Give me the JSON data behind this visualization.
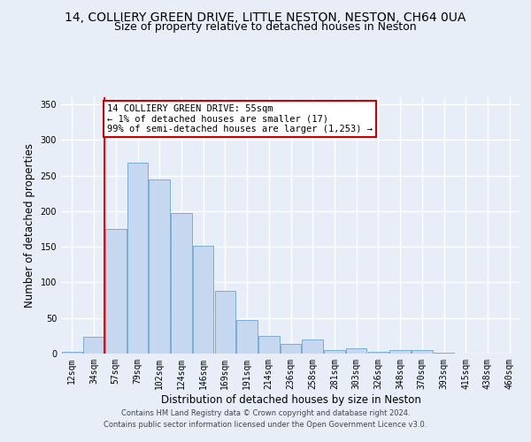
{
  "title_line1": "14, COLLIERY GREEN DRIVE, LITTLE NESTON, NESTON, CH64 0UA",
  "title_line2": "Size of property relative to detached houses in Neston",
  "xlabel": "Distribution of detached houses by size in Neston",
  "ylabel": "Number of detached properties",
  "bin_labels": [
    "12sqm",
    "34sqm",
    "57sqm",
    "79sqm",
    "102sqm",
    "124sqm",
    "146sqm",
    "169sqm",
    "191sqm",
    "214sqm",
    "236sqm",
    "258sqm",
    "281sqm",
    "303sqm",
    "326sqm",
    "348sqm",
    "370sqm",
    "393sqm",
    "415sqm",
    "438sqm",
    "460sqm"
  ],
  "bar_heights": [
    3,
    24,
    175,
    268,
    245,
    198,
    152,
    88,
    47,
    25,
    14,
    20,
    5,
    7,
    2,
    5,
    5,
    1,
    0,
    0,
    0
  ],
  "bar_color": "#c5d8f0",
  "bar_edge_color": "#7aadd4",
  "red_line_index": 2,
  "ylim": [
    0,
    360
  ],
  "yticks": [
    0,
    50,
    100,
    150,
    200,
    250,
    300,
    350
  ],
  "annotation_text": "14 COLLIERY GREEN DRIVE: 55sqm\n← 1% of detached houses are smaller (17)\n99% of semi-detached houses are larger (1,253) →",
  "annotation_box_color": "#ffffff",
  "annotation_box_edge": "#cc0000",
  "footer_line1": "Contains HM Land Registry data © Crown copyright and database right 2024.",
  "footer_line2": "Contains public sector information licensed under the Open Government Licence v3.0.",
  "bg_color": "#e8eef8",
  "plot_bg_color": "#e8eef8",
  "grid_color": "#ffffff",
  "title_fontsize": 10,
  "subtitle_fontsize": 9,
  "tick_fontsize": 7,
  "label_fontsize": 8.5,
  "annotation_fontsize": 7.5,
  "footer_fontsize": 6
}
